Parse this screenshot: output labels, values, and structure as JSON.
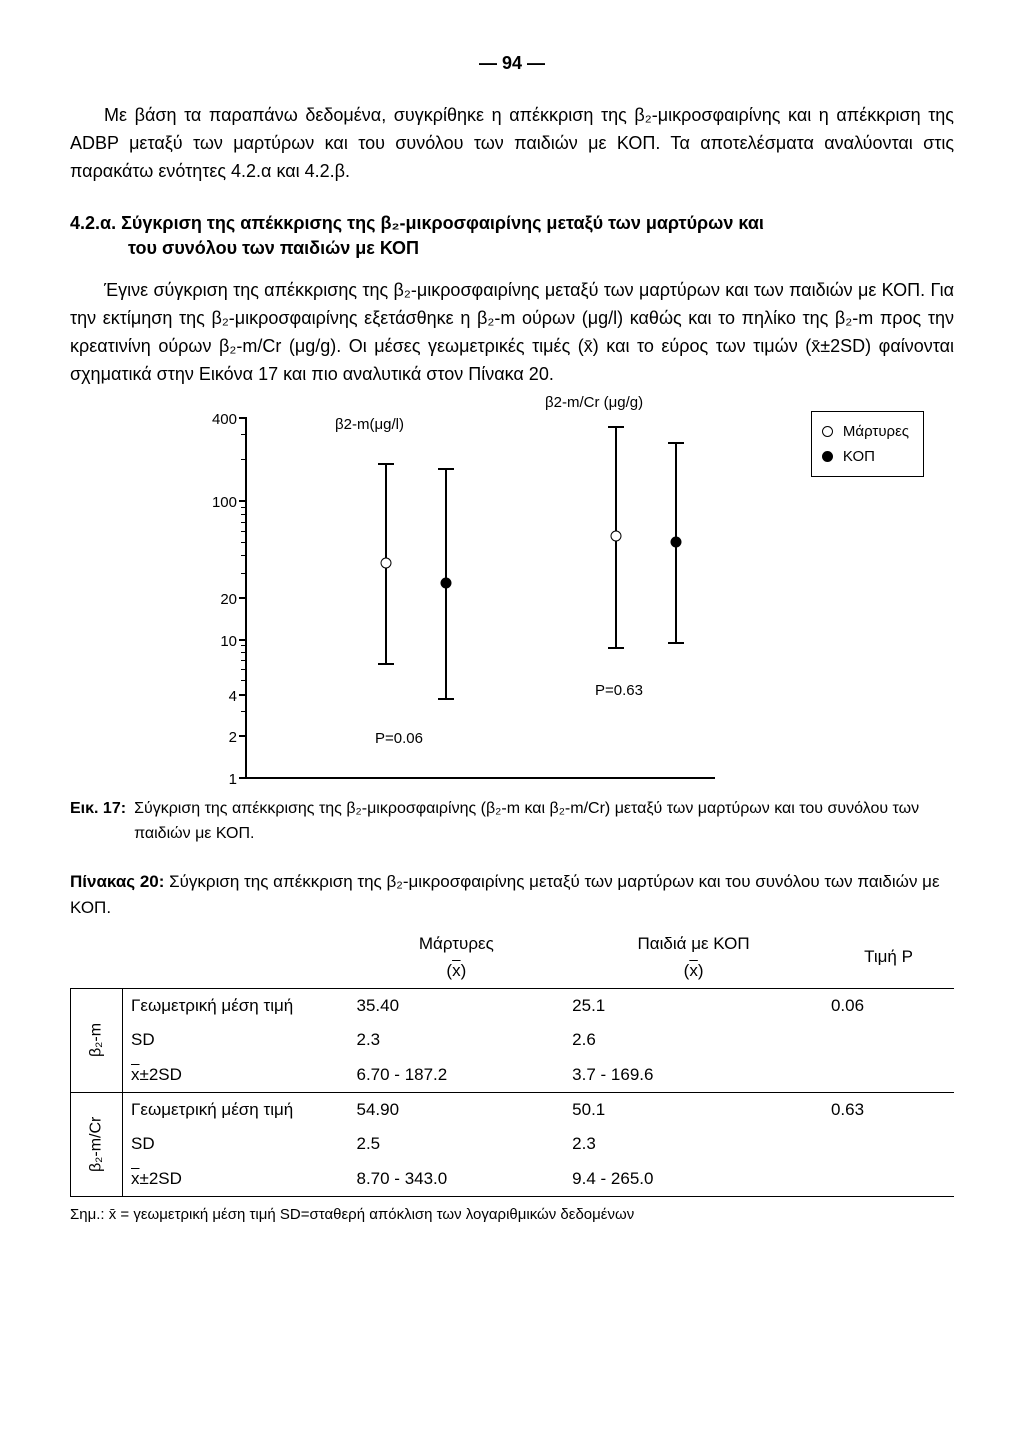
{
  "page_number": "— 94 —",
  "paragraphs": {
    "p1": "Με βάση τα παραπάνω δεδομένα, συγκρίθηκε η απέκκριση της β₂-μικροσφαιρίνης και η απέκκριση της ADBP μεταξύ των μαρτύρων και του συνόλου των παιδιών με ΚΟΠ. Τα αποτελέσματα αναλύονται στις παρακάτω ενότητες 4.2.α και 4.2.β.",
    "section_num": "4.2.α.",
    "section_title_l1": "Σύγκριση της απέκκρισης της β₂-μικροσφαιρίνης μεταξύ των μαρτύρων και",
    "section_title_l2": "του συνόλου των παιδιών με ΚΟΠ",
    "p2": "Έγινε σύγκριση της απέκκρισης της β₂-μικροσφαιρίνης μεταξύ των μαρτύρων και των παιδιών με ΚΟΠ. Για την εκτίμηση της β₂-μικροσφαιρίνης εξετάσθηκε η β₂-m ούρων (μg/l) καθώς και το πηλίκο της β₂-m προς την κρεατινίνη ούρων β₂-m/Cr (μg/g). Οι μέσες γεωμετρικές τιμές (x̄) και το εύρος των τιμών (x̄±2SD) φαίνονται σχηματικά στην Εικόνα 17 και πιο αναλυτικά στον Πίνακα 20."
  },
  "chart": {
    "type": "log-range-plot",
    "yticks": [
      {
        "value": 400,
        "label": "400"
      },
      {
        "value": 100,
        "label": "100"
      },
      {
        "value": 20,
        "label": "20"
      },
      {
        "value": 10,
        "label": "10"
      },
      {
        "value": 4,
        "label": "4"
      },
      {
        "value": 2,
        "label": "2"
      },
      {
        "value": 1,
        "label": "1"
      }
    ],
    "axis_color": "#000000",
    "background_color": "#ffffff",
    "series_label_left": "β2-m(μg/l)",
    "series_label_right": "β2-m/Cr (μg/g)",
    "legend": [
      {
        "marker": "open",
        "label": "Μάρτυρες"
      },
      {
        "marker": "filled",
        "label": "ΚΟΠ"
      }
    ],
    "groups": [
      {
        "name": "b2m_controls",
        "x": 140,
        "mean": 35.4,
        "low": 6.7,
        "high": 187.2,
        "marker": "open"
      },
      {
        "name": "b2m_kop",
        "x": 200,
        "mean": 25.1,
        "low": 3.7,
        "high": 169.6,
        "marker": "filled"
      },
      {
        "name": "b2mcr_controls",
        "x": 370,
        "mean": 54.9,
        "low": 8.7,
        "high": 343.0,
        "marker": "open"
      },
      {
        "name": "b2mcr_kop",
        "x": 430,
        "mean": 50.1,
        "low": 9.4,
        "high": 265.0,
        "marker": "filled"
      }
    ],
    "pvalues": [
      {
        "label": "P=0.06",
        "x": 150,
        "y_value": 2
      },
      {
        "label": "P=0.63",
        "x": 370,
        "y_value": 4.5
      }
    ]
  },
  "fig_caption": {
    "label": "Εικ. 17:",
    "text": "Σύγκριση της απέκκρισης της β₂-μικροσφαιρίνης (β₂-m και β₂-m/Cr) μεταξύ των μαρτύρων και του συνόλου των παιδιών με ΚΟΠ."
  },
  "table_title_bold": "Πίνακας 20:",
  "table_title_rest": " Σύγκριση της απέκκριση της β₂-μικροσφαιρίνης μεταξύ των μαρτύρων και του συνόλου των παιδιών με ΚΟΠ.",
  "table": {
    "columns": [
      "",
      "",
      "Μάρτυρες\n(x̄)",
      "Παιδιά με ΚΟΠ\n(x̄)",
      "Τιμή P"
    ],
    "groups": [
      {
        "group_label": "β₂-m",
        "rows": [
          {
            "name": "Γεωμετρική μέση τιμή",
            "c1": "35.40",
            "c2": "25.1",
            "p": "0.06"
          },
          {
            "name": "SD",
            "c1": "2.3",
            "c2": "2.6",
            "p": ""
          },
          {
            "name": "x̄±2SD",
            "c1": "6.70 - 187.2",
            "c2": "3.7 - 169.6",
            "p": ""
          }
        ]
      },
      {
        "group_label": "β₂-m/Cr",
        "rows": [
          {
            "name": "Γεωμετρική μέση τιμή",
            "c1": "54.90",
            "c2": "50.1",
            "p": "0.63"
          },
          {
            "name": "SD",
            "c1": "2.5",
            "c2": "2.3",
            "p": ""
          },
          {
            "name": "x̄±2SD",
            "c1": "8.70 - 343.0",
            "c2": "9.4 - 265.0",
            "p": ""
          }
        ]
      }
    ]
  },
  "table_note": "Σημ.: x̄ = γεωμετρική μέση τιμή   SD=σταθερή απόκλιση των λογαριθμικών δεδομένων"
}
